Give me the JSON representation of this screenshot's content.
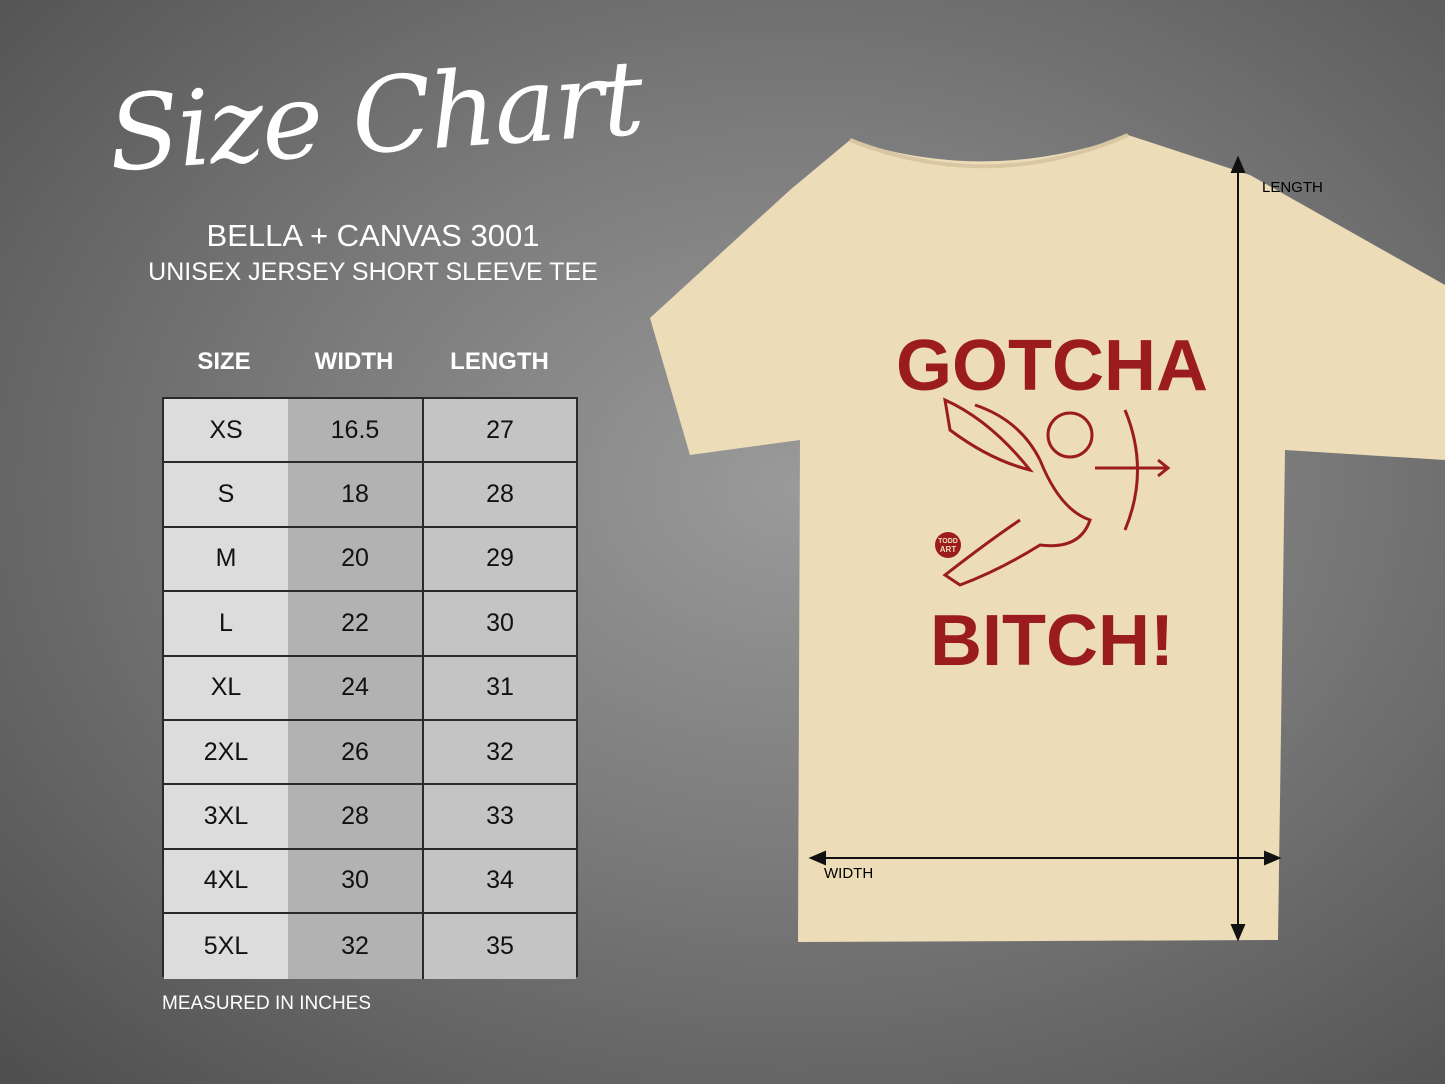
{
  "title": "Size Chart",
  "brand": "BELLA + CANVAS 3001",
  "model": "UNISEX JERSEY SHORT SLEEVE TEE",
  "table": {
    "headers": [
      "SIZE",
      "WIDTH",
      "LENGTH"
    ],
    "rows": [
      [
        "XS",
        "16.5",
        "27"
      ],
      [
        "S",
        "18",
        "28"
      ],
      [
        "M",
        "20",
        "29"
      ],
      [
        "L",
        "22",
        "30"
      ],
      [
        "XL",
        "24",
        "31"
      ],
      [
        "2XL",
        "26",
        "32"
      ],
      [
        "3XL",
        "28",
        "33"
      ],
      [
        "4XL",
        "30",
        "34"
      ],
      [
        "5XL",
        "32",
        "35"
      ]
    ]
  },
  "note": "MEASURED IN INCHES",
  "shirt": {
    "color": "#ecdcb8",
    "print_color": "#9b1c1f",
    "text_top": "GOTCHA",
    "text_bottom": "BITCH!",
    "logo": [
      "TODD",
      "ART"
    ],
    "length_label": "LENGTH",
    "width_label": "WIDTH"
  }
}
